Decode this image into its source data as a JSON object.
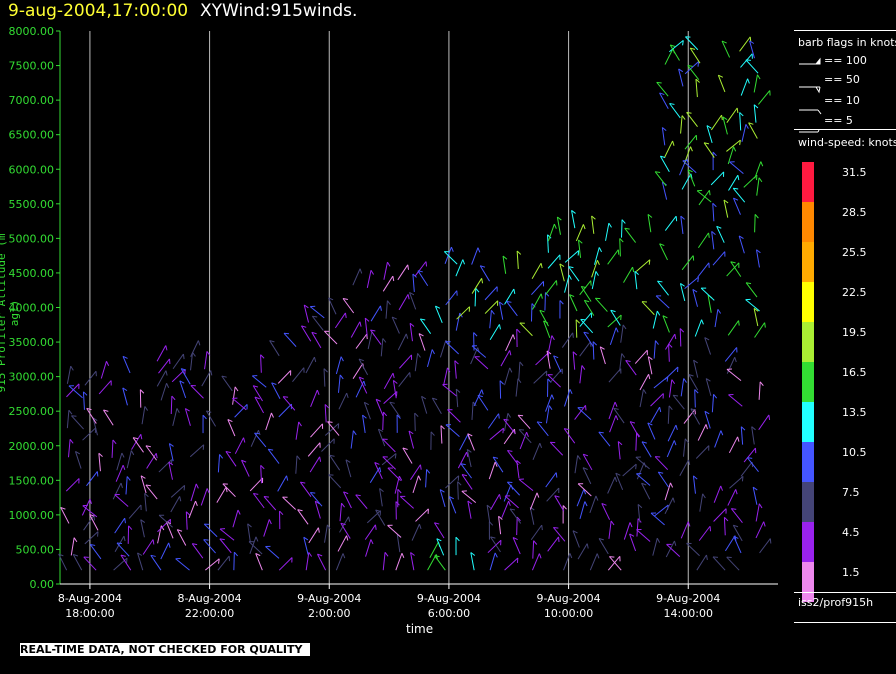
{
  "header": {
    "date": "9-aug-2004,17:00:00",
    "title": "XYWind:915winds."
  },
  "legend": {
    "barb_title": "barb flags in knots",
    "barbs": [
      "== 100",
      "== 50",
      "== 10",
      "== 5"
    ],
    "speed_title": "wind-speed: knots",
    "swatches": [
      {
        "label": "31.5",
        "color": "#ff1a40"
      },
      {
        "label": "28.5",
        "color": "#ff8800"
      },
      {
        "label": "25.5",
        "color": "#ffaa00"
      },
      {
        "label": "22.5",
        "color": "#ffff00"
      },
      {
        "label": "19.5",
        "color": "#aaee33"
      },
      {
        "label": "16.5",
        "color": "#33dd33"
      },
      {
        "label": "13.5",
        "color": "#22ffff"
      },
      {
        "label": "10.5",
        "color": "#4455ff"
      },
      {
        "label": "7.5",
        "color": "#444477"
      },
      {
        "label": "4.5",
        "color": "#9922ee"
      },
      {
        "label": "1.5",
        "color": "#ee88ee"
      }
    ],
    "source": "iss2/prof915h"
  },
  "banner": "REAL-TIME DATA, NOT CHECKED FOR QUALITY",
  "chart_data": {
    "type": "scatter",
    "title": "XYWind:915winds.",
    "xlabel": "time",
    "ylabel": "915 Profiler Altitude (m agl)",
    "ylim": [
      0,
      8000
    ],
    "y_ticks": [
      "0.00",
      "500.00",
      "1000.00",
      "1500.00",
      "2000.00",
      "2500.00",
      "3000.00",
      "3500.00",
      "4000.00",
      "4500.00",
      "5000.00",
      "5500.00",
      "6000.00",
      "6500.00",
      "7000.00",
      "7500.00",
      "8000.00"
    ],
    "x_ticks": [
      {
        "date": "8-Aug-2004",
        "time": "18:00:00",
        "hour": 18
      },
      {
        "date": "8-Aug-2004",
        "time": "22:00:00",
        "hour": 22
      },
      {
        "date": "9-Aug-2004",
        "time": "2:00:00",
        "hour": 26
      },
      {
        "date": "9-Aug-2004",
        "time": "6:00:00",
        "hour": 30
      },
      {
        "date": "9-Aug-2004",
        "time": "10:00:00",
        "hour": 34
      },
      {
        "date": "9-Aug-2004",
        "time": "14:00:00",
        "hour": 38
      }
    ],
    "x_range_hours": [
      17,
      41
    ],
    "grid": "vertical lines at major ticks",
    "series_note": "wind barbs colored by speed (knots)"
  }
}
